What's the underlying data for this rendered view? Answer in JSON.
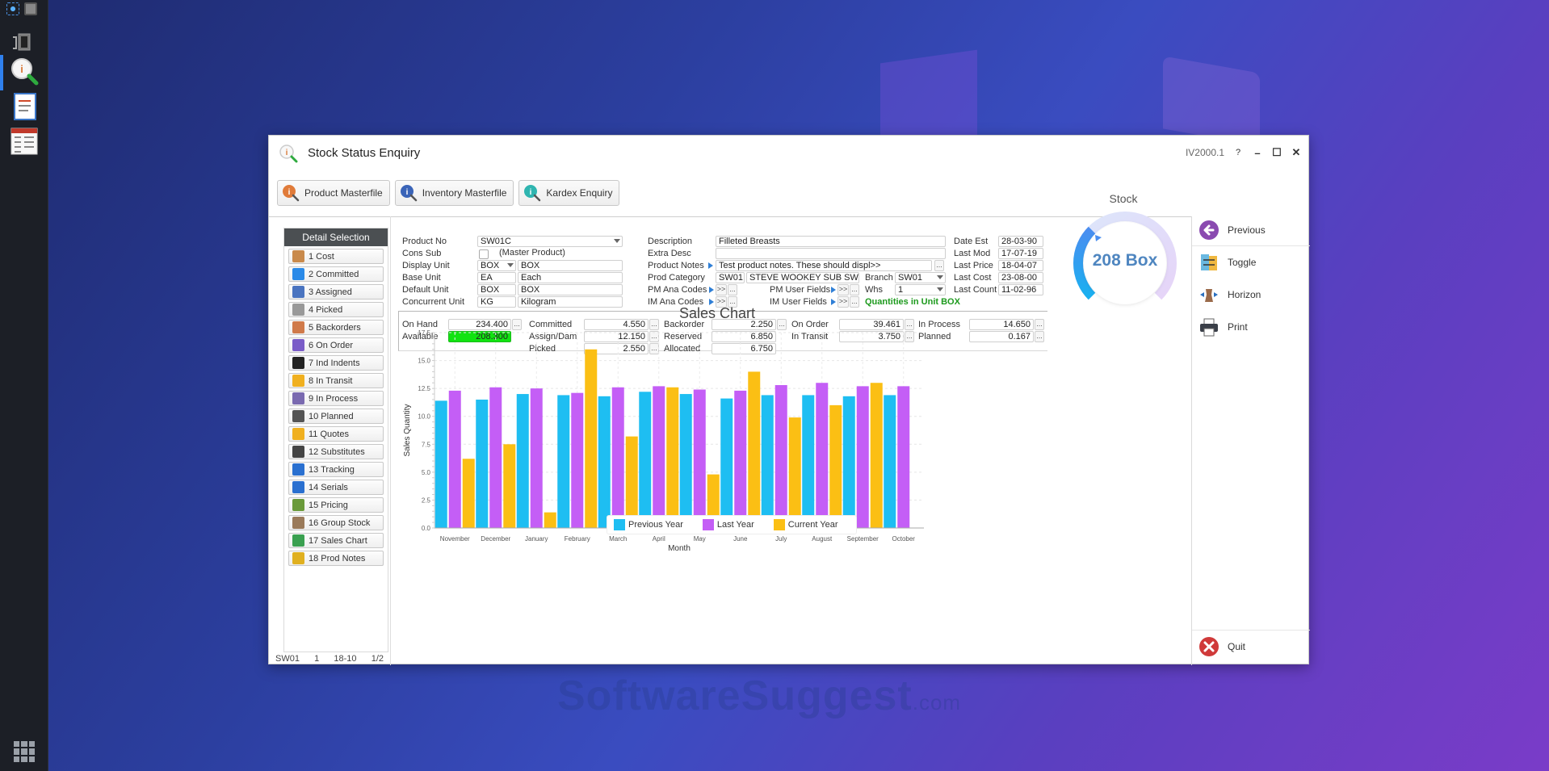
{
  "desktop": {
    "watermark": "SoftwareSuggest",
    "watermark_suffix": ".com"
  },
  "taskbar": {
    "icons": [
      "network-icon",
      "screen-icon",
      "remote-desktop-icon",
      "stock-enquiry-icon",
      "document-icon",
      "list-report-icon",
      "app-grid-icon"
    ]
  },
  "window": {
    "title": "Stock Status Enquiry",
    "program_code": "IV2000.1",
    "help_label": "?",
    "minimize_label": "–",
    "maximize_label": "☐",
    "close_label": "✕"
  },
  "toolbar": {
    "buttons": [
      {
        "label": "Product Masterfile",
        "icon": "info-search-icon",
        "color": "#e07b39"
      },
      {
        "label": "Inventory Masterfile",
        "icon": "info-search-icon",
        "color": "#3a64b8"
      },
      {
        "label": "Kardex Enquiry",
        "icon": "info-search-icon",
        "color": "#2fb5b0"
      }
    ]
  },
  "detail_selection": {
    "header": "Detail Selection",
    "items": [
      {
        "label": "1 Cost",
        "icon": "dollar-icon",
        "color": "#c98a4c"
      },
      {
        "label": "2 Committed",
        "icon": "cloud-upload-icon",
        "color": "#2a8ae8"
      },
      {
        "label": "3 Assigned",
        "icon": "assigned-icon",
        "color": "#4a74c0"
      },
      {
        "label": "4 Picked",
        "icon": "pick-icon",
        "color": "#999999"
      },
      {
        "label": "5 Backorders",
        "icon": "backorder-icon",
        "color": "#d07a4a"
      },
      {
        "label": "6 On Order",
        "icon": "cart-icon",
        "color": "#7a5cc8"
      },
      {
        "label": "7 Ind Indents",
        "icon": "indent-icon",
        "color": "#222222"
      },
      {
        "label": "8 In Transit",
        "icon": "truck-icon",
        "color": "#f0b020"
      },
      {
        "label": "9 In Process",
        "icon": "process-icon",
        "color": "#7a6ab0"
      },
      {
        "label": "10 Planned",
        "icon": "clipboard-icon",
        "color": "#555555"
      },
      {
        "label": "11 Quotes",
        "icon": "quote-icon",
        "color": "#f0b020"
      },
      {
        "label": "12 Substitutes",
        "icon": "substitute-icon",
        "color": "#444444"
      },
      {
        "label": "13 Tracking",
        "icon": "tracking-icon",
        "color": "#2a70d0"
      },
      {
        "label": "14 Serials",
        "icon": "barcode-icon",
        "color": "#2a70d0"
      },
      {
        "label": "15 Pricing",
        "icon": "price-tag-icon",
        "color": "#6a9a3a"
      },
      {
        "label": "16 Group Stock",
        "icon": "group-stock-icon",
        "color": "#9a7a5a"
      },
      {
        "label": "17 Sales Chart",
        "icon": "sales-chart-icon",
        "color": "#3aa050"
      },
      {
        "label": "18 Prod Notes",
        "icon": "notes-icon",
        "color": "#e0b020"
      }
    ]
  },
  "status_bar": {
    "branch": "SW01",
    "warehouse": "1",
    "date": "18-10",
    "page": "1/2"
  },
  "product": {
    "product_no_label": "Product No",
    "product_no": "SW01C",
    "cons_sub_label": "Cons Sub",
    "cons_sub_note": "(Master Product)",
    "display_unit_label": "Display Unit",
    "display_unit_code": "BOX",
    "display_unit_desc": "BOX",
    "base_unit_label": "Base Unit",
    "base_unit_code": "EA",
    "base_unit_desc": "Each",
    "default_unit_label": "Default Unit",
    "default_unit_code": "BOX",
    "default_unit_desc": "BOX",
    "concurrent_unit_label": "Concurrent Unit",
    "concurrent_unit_code": "KG",
    "concurrent_unit_desc": "Kilogram",
    "description_label": "Description",
    "description": "Filleted Breasts",
    "extra_desc_label": "Extra Desc",
    "extra_desc": "",
    "product_notes_label": "Product Notes",
    "product_notes": "Test product notes. These should displ>>",
    "prod_category_label": "Prod Category",
    "prod_category_code": "SW01",
    "prod_category_desc": "STEVE WOOKEY SUB SW",
    "branch_label": "Branch",
    "branch": "SW01",
    "pm_ana_codes_label": "PM Ana Codes",
    "pm_user_fields_label": "PM User Fields",
    "whs_label": "Whs",
    "whs": "1",
    "im_ana_codes_label": "IM Ana Codes",
    "im_user_fields_label": "IM User Fields",
    "expand_label": ">>",
    "ellipsis_label": "...",
    "quantities_note": "Quantities in Unit BOX",
    "date_est_label": "Date Est",
    "date_est": "28-03-90",
    "last_mod_label": "Last Mod",
    "last_mod": "17-07-19",
    "last_price_label": "Last Price",
    "last_price": "18-04-07",
    "last_cost_label": "Last Cost",
    "last_cost": "23-08-00",
    "last_count_label": "Last Count",
    "last_count": "11-02-96"
  },
  "quantities": {
    "on_hand_label": "On Hand",
    "on_hand": "234.400",
    "available_label": "Available",
    "available": "208.300",
    "committed_label": "Committed",
    "committed": "4.550",
    "assign_dam_label": "Assign/Dam",
    "assign_dam": "12.150",
    "picked_label": "Picked",
    "picked": "2.550",
    "backorder_label": "Backorder",
    "backorder": "2.250",
    "reserved_label": "Reserved",
    "reserved": "6.850",
    "allocated_label": "Allocated",
    "allocated": "6.750",
    "on_order_label": "On Order",
    "on_order": "39.461",
    "in_transit_label": "In Transit",
    "in_transit": "3.750",
    "in_process_label": "In Process",
    "in_process": "14.650",
    "planned_label": "Planned",
    "planned": "0.167"
  },
  "stock_gauge": {
    "title": "Stock",
    "value_text": "208 Box",
    "available": 208.3,
    "on_hand": 234.4,
    "colors": {
      "fill_start": "#1ab0f0",
      "fill_end": "#4a8ef0",
      "track_start": "#dce6fb",
      "track_end": "#e6d4f8",
      "text": "#4f86c0"
    }
  },
  "right_panel": {
    "actions": [
      {
        "label": "Previous",
        "icon": "previous-arrow-icon"
      },
      {
        "label": "Toggle",
        "icon": "toggle-icon"
      },
      {
        "label": "Horizon",
        "icon": "horizon-icon"
      },
      {
        "label": "Print",
        "icon": "printer-icon"
      },
      {
        "label": "Quit",
        "icon": "quit-icon"
      }
    ]
  },
  "chart_data": {
    "type": "bar",
    "title": "Sales Chart",
    "xlabel": "Month",
    "ylabel": "Sales Quantity",
    "ylim": [
      0,
      17.5
    ],
    "yticks": [
      "0.0",
      "2.5",
      "5.0",
      "7.5",
      "10.0",
      "12.5",
      "15.0",
      "17.5"
    ],
    "grid": true,
    "legend_position": "bottom",
    "categories": [
      "November",
      "December",
      "January",
      "February",
      "March",
      "April",
      "May",
      "June",
      "July",
      "August",
      "September",
      "October"
    ],
    "series": [
      {
        "name": "Previous Year",
        "color": "#1ebef2",
        "values": [
          11.4,
          11.5,
          12.0,
          11.9,
          11.8,
          12.2,
          12.0,
          11.6,
          11.9,
          11.9,
          11.8,
          11.9
        ]
      },
      {
        "name": "Last Year",
        "color": "#c45ef6",
        "values": [
          12.3,
          12.6,
          12.5,
          12.1,
          12.6,
          12.7,
          12.4,
          12.3,
          12.8,
          13.0,
          12.7,
          12.7
        ]
      },
      {
        "name": "Current Year",
        "color": "#fbbf14",
        "values": [
          6.2,
          7.5,
          1.4,
          16.0,
          8.2,
          12.6,
          4.8,
          14.0,
          9.9,
          11.0,
          13.0,
          0
        ]
      }
    ]
  }
}
